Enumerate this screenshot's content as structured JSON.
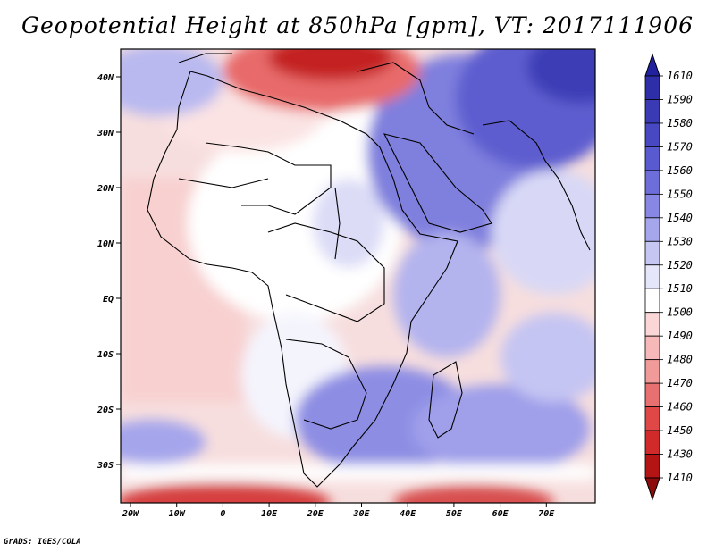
{
  "title": "Geopotential Height at 850hPa [gpm], VT: 2017111906",
  "credit": "GrADS: IGES/COLA",
  "map": {
    "lon_labels": [
      "20W",
      "10W",
      "0",
      "10E",
      "20E",
      "30E",
      "40E",
      "50E",
      "60E",
      "70E"
    ],
    "lat_labels": [
      "40N",
      "30N",
      "20N",
      "10N",
      "EQ",
      "10S",
      "20S",
      "30S"
    ]
  },
  "colorbar": {
    "levels": [
      "1610",
      "1590",
      "1580",
      "1570",
      "1560",
      "1550",
      "1540",
      "1530",
      "1520",
      "1510",
      "1500",
      "1490",
      "1480",
      "1470",
      "1460",
      "1450",
      "1430",
      "1410"
    ],
    "colors": [
      "#2222a0",
      "#2e2ea8",
      "#3a3ab5",
      "#4848c2",
      "#5a5ad0",
      "#6e6edb",
      "#8888e4",
      "#a6a6ec",
      "#c6c6f3",
      "#e6e6fa",
      "#ffffff",
      "#fbd6d6",
      "#f6b8b8",
      "#f09a9a",
      "#e87070",
      "#e04848",
      "#d02a2a",
      "#b41414",
      "#8c0c0c"
    ]
  }
}
